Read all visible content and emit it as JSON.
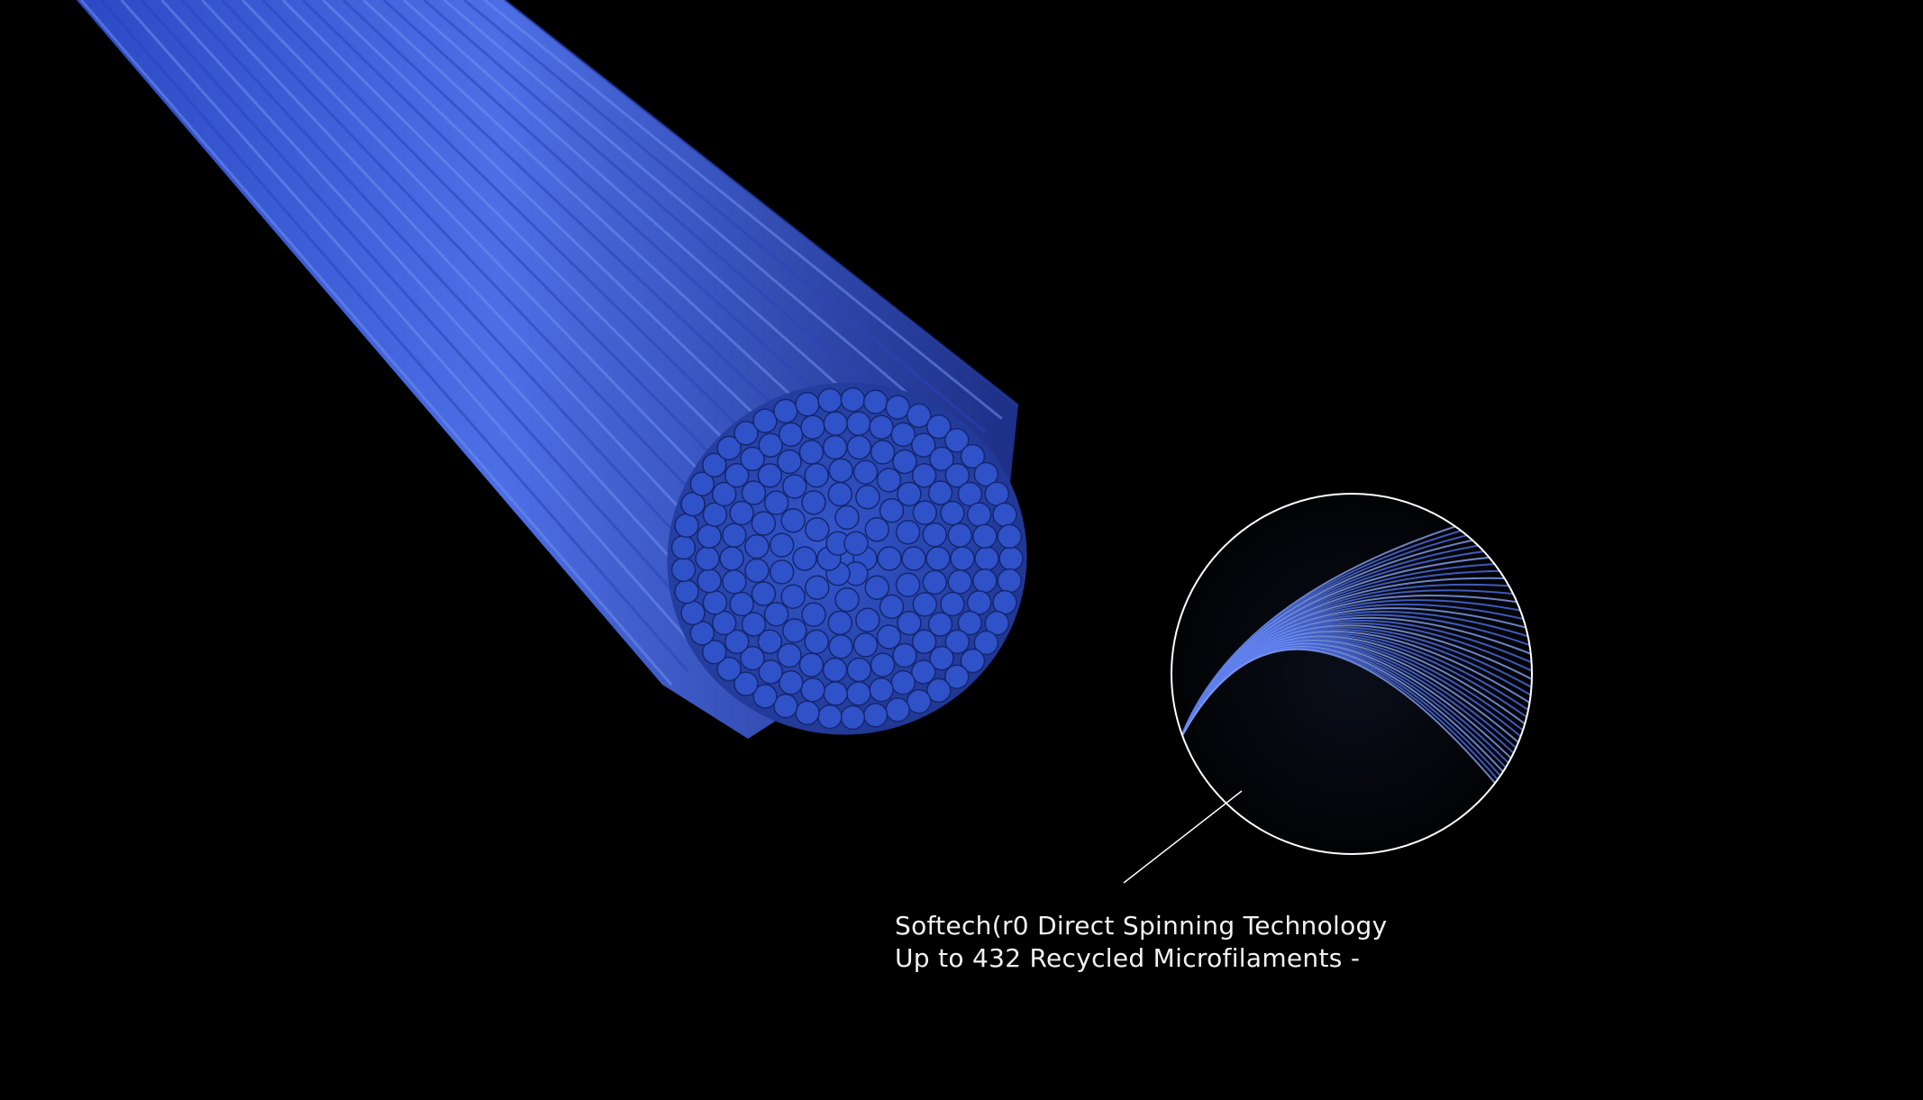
{
  "caption": {
    "line1": "Softech(r0 Direct Spinning Technology",
    "line2": "Up to 432 Recycled Microfilaments -"
  },
  "colors": {
    "background": "#000000",
    "fiber_blue": "#3f63d9",
    "fiber_light": "#6f8ff0",
    "fiber_dark": "#1d2f86",
    "callout_line": "#ffffff",
    "caption_text": "#f2f2f2"
  },
  "illustration": {
    "subject": "bundle-of-microfilaments",
    "callout": "magnified-filament-splay"
  }
}
